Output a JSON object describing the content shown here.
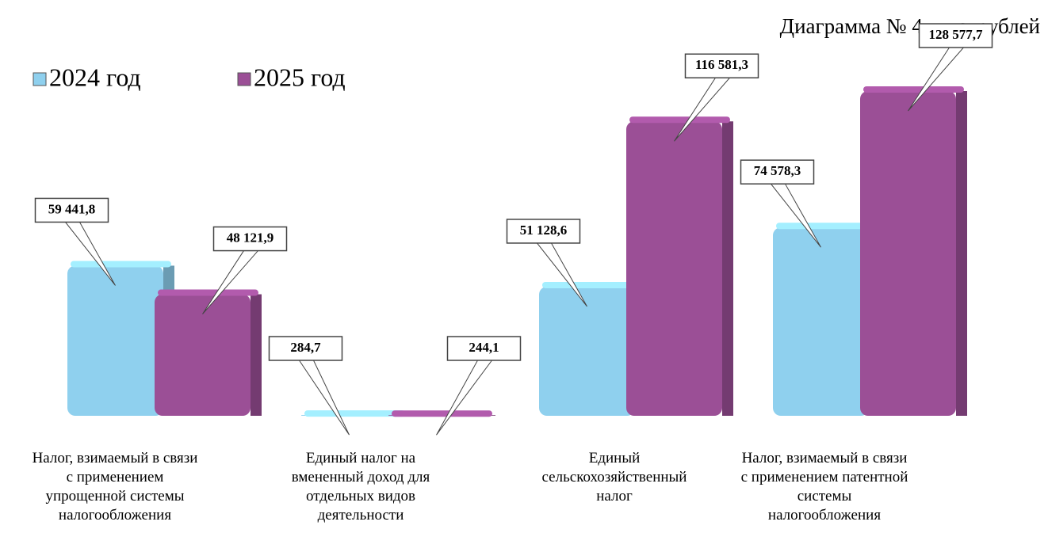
{
  "chart_data": {
    "type": "bar",
    "title": "Диаграмма № 4, тыс. рублей",
    "categories": [
      "Налог, взимаемый в связи\nс применением\nупрощенной системы\nналогообложения",
      "Единый налог на\nвмененный доход для\nотдельных видов\nдеятельности",
      "Единый\nсельскохозяйственный\nналог",
      "Налог, взимаемый в связи\nс применением патентной\nсистемы\nналогообложения"
    ],
    "series": [
      {
        "name": "2024 год",
        "color": "#8fd0ee",
        "values": [
          59441.8,
          284.7,
          51128.6,
          74578.3
        ],
        "value_labels": [
          "59 441,8",
          "284,7",
          "51 128,6",
          "74 578,3"
        ]
      },
      {
        "name": "2025 год",
        "color": "#9b4f96",
        "values": [
          48121.9,
          244.1,
          116581.3,
          128577.7
        ],
        "value_labels": [
          "48 121,9",
          "244,1",
          "116 581,3",
          "128 577,7"
        ]
      }
    ],
    "legend": "top-left"
  }
}
